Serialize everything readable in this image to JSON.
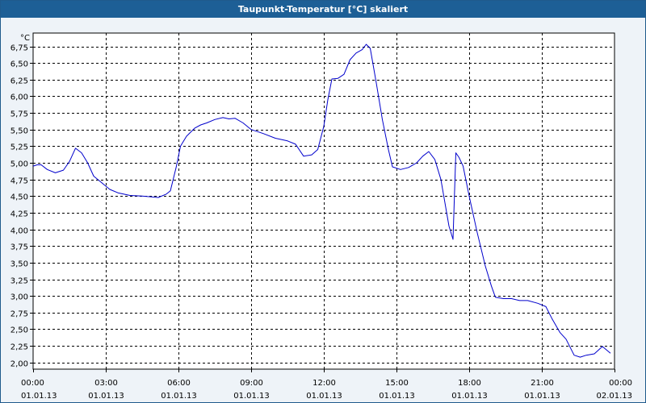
{
  "window": {
    "title": "Taupunkt-Temperatur [°C] skaliert"
  },
  "colors": {
    "titlebar": "#1d5f96",
    "line": "#0000cc",
    "grid": "#000000",
    "background": "#eef3f8"
  },
  "chart_data": {
    "type": "line",
    "title": "Taupunkt-Temperatur [°C] skaliert",
    "ylabel": "°C",
    "xlabel": "",
    "ylim": [
      1.9,
      6.95
    ],
    "xlim": [
      "2013-01-01 00:00",
      "2013-01-02 00:00"
    ],
    "grid": true,
    "y_ticks": [
      "6,75",
      "6,50",
      "6,25",
      "6,00",
      "5,75",
      "5,50",
      "5,25",
      "5,00",
      "4,75",
      "4,50",
      "4,25",
      "4,00",
      "3,75",
      "3,50",
      "3,25",
      "3,00",
      "2,75",
      "2,50",
      "2,25",
      "2,00"
    ],
    "x_ticks": [
      {
        "time": "00:00",
        "date": "01.01.13"
      },
      {
        "time": "03:00",
        "date": "01.01.13"
      },
      {
        "time": "06:00",
        "date": "01.01.13"
      },
      {
        "time": "09:00",
        "date": "01.01.13"
      },
      {
        "time": "12:00",
        "date": "01.01.13"
      },
      {
        "time": "15:00",
        "date": "01.01.13"
      },
      {
        "time": "18:00",
        "date": "01.01.13"
      },
      {
        "time": "21:00",
        "date": "01.01.13"
      },
      {
        "time": "00:00",
        "date": "02.01.13"
      }
    ],
    "series": [
      {
        "points": [
          [
            "2013-01-01 00:00",
            4.95
          ],
          [
            "2013-01-01 00:10",
            4.97
          ],
          [
            "2013-01-01 00:20",
            4.97
          ],
          [
            "2013-01-01 00:35",
            4.9
          ],
          [
            "2013-01-01 00:55",
            4.85
          ],
          [
            "2013-01-01 01:15",
            4.89
          ],
          [
            "2013-01-01 01:30",
            5.02
          ],
          [
            "2013-01-01 01:45",
            5.22
          ],
          [
            "2013-01-01 02:00",
            5.15
          ],
          [
            "2013-01-01 02:15",
            5.0
          ],
          [
            "2013-01-01 02:30",
            4.8
          ],
          [
            "2013-01-01 02:50",
            4.7
          ],
          [
            "2013-01-01 03:10",
            4.6
          ],
          [
            "2013-01-01 03:30",
            4.55
          ],
          [
            "2013-01-01 04:00",
            4.51
          ],
          [
            "2013-01-01 04:30",
            4.5
          ],
          [
            "2013-01-01 04:50",
            4.49
          ],
          [
            "2013-01-01 05:10",
            4.48
          ],
          [
            "2013-01-01 05:30",
            4.53
          ],
          [
            "2013-01-01 05:40",
            4.58
          ],
          [
            "2013-01-01 05:55",
            4.95
          ],
          [
            "2013-01-01 06:05",
            5.25
          ],
          [
            "2013-01-01 06:20",
            5.4
          ],
          [
            "2013-01-01 06:40",
            5.52
          ],
          [
            "2013-01-01 06:55",
            5.57
          ],
          [
            "2013-01-01 07:10",
            5.6
          ],
          [
            "2013-01-01 07:30",
            5.65
          ],
          [
            "2013-01-01 07:50",
            5.68
          ],
          [
            "2013-01-01 08:05",
            5.66
          ],
          [
            "2013-01-01 08:20",
            5.67
          ],
          [
            "2013-01-01 08:40",
            5.6
          ],
          [
            "2013-01-01 09:00",
            5.5
          ],
          [
            "2013-01-01 09:30",
            5.44
          ],
          [
            "2013-01-01 10:00",
            5.37
          ],
          [
            "2013-01-01 10:30",
            5.33
          ],
          [
            "2013-01-01 10:50",
            5.28
          ],
          [
            "2013-01-01 11:10",
            5.1
          ],
          [
            "2013-01-01 11:30",
            5.12
          ],
          [
            "2013-01-01 11:45",
            5.2
          ],
          [
            "2013-01-01 12:00",
            5.55
          ],
          [
            "2013-01-01 12:10",
            5.95
          ],
          [
            "2013-01-01 12:20",
            6.26
          ],
          [
            "2013-01-01 12:35",
            6.27
          ],
          [
            "2013-01-01 12:50",
            6.33
          ],
          [
            "2013-01-01 13:05",
            6.55
          ],
          [
            "2013-01-01 13:20",
            6.65
          ],
          [
            "2013-01-01 13:35",
            6.7
          ],
          [
            "2013-01-01 13:45",
            6.78
          ],
          [
            "2013-01-01 13:55",
            6.72
          ],
          [
            "2013-01-01 14:10",
            6.2
          ],
          [
            "2013-01-01 14:25",
            5.65
          ],
          [
            "2013-01-01 14:40",
            5.2
          ],
          [
            "2013-01-01 14:50",
            4.94
          ],
          [
            "2013-01-01 15:10",
            4.9
          ],
          [
            "2013-01-01 15:30",
            4.93
          ],
          [
            "2013-01-01 15:50",
            5.0
          ],
          [
            "2013-01-01 16:05",
            5.1
          ],
          [
            "2013-01-01 16:20",
            5.17
          ],
          [
            "2013-01-01 16:35",
            5.05
          ],
          [
            "2013-01-01 16:50",
            4.75
          ],
          [
            "2013-01-01 17:10",
            4.05
          ],
          [
            "2013-01-01 17:20",
            3.85
          ],
          [
            "2013-01-01 17:27",
            5.15
          ],
          [
            "2013-01-01 17:35",
            5.08
          ],
          [
            "2013-01-01 17:45",
            4.95
          ],
          [
            "2013-01-01 18:00",
            4.5
          ],
          [
            "2013-01-01 18:20",
            3.95
          ],
          [
            "2013-01-01 18:40",
            3.45
          ],
          [
            "2013-01-01 18:55",
            3.15
          ],
          [
            "2013-01-01 19:05",
            2.98
          ],
          [
            "2013-01-01 19:25",
            2.96
          ],
          [
            "2013-01-01 19:45",
            2.96
          ],
          [
            "2013-01-01 20:05",
            2.93
          ],
          [
            "2013-01-01 20:25",
            2.93
          ],
          [
            "2013-01-01 20:50",
            2.89
          ],
          [
            "2013-01-01 21:10",
            2.84
          ],
          [
            "2013-01-01 21:25",
            2.66
          ],
          [
            "2013-01-01 21:45",
            2.45
          ],
          [
            "2013-01-01 22:00",
            2.35
          ],
          [
            "2013-01-01 22:20",
            2.11
          ],
          [
            "2013-01-01 22:35",
            2.08
          ],
          [
            "2013-01-01 22:50",
            2.11
          ],
          [
            "2013-01-01 23:10",
            2.13
          ],
          [
            "2013-01-01 23:30",
            2.24
          ],
          [
            "2013-01-01 23:50",
            2.14
          ]
        ]
      }
    ]
  }
}
